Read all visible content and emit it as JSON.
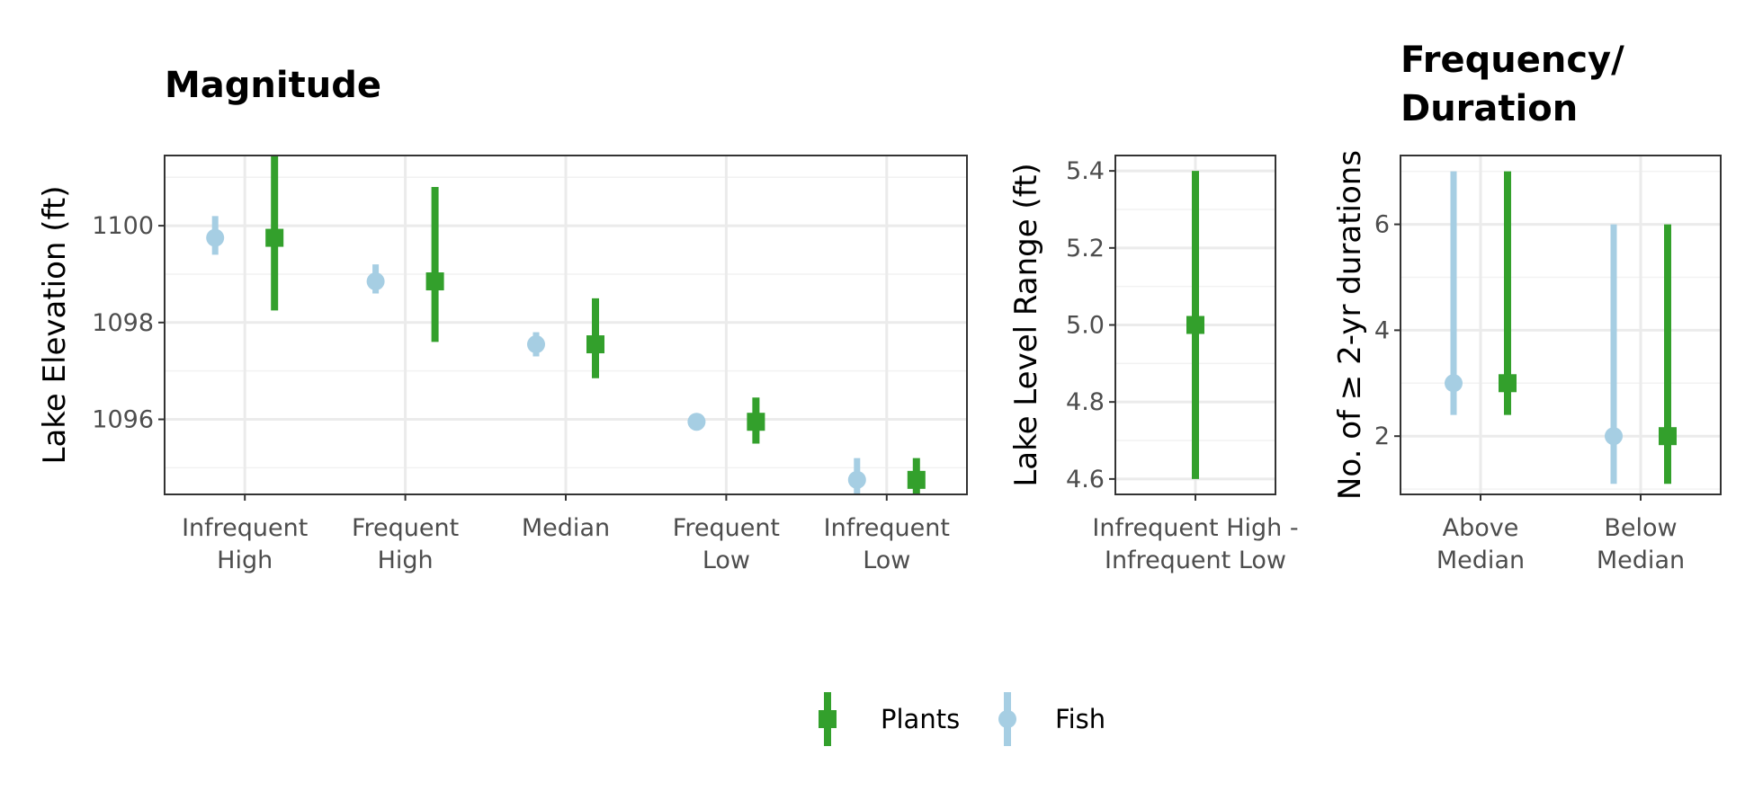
{
  "colors": {
    "Plants": "#33a02c",
    "Fish": "#a6cee3"
  },
  "legend": {
    "items": [
      {
        "label": "Plants",
        "shape": "square",
        "color": "#33a02c"
      },
      {
        "label": "Fish",
        "shape": "circle",
        "color": "#a6cee3"
      }
    ],
    "placement": "bottom"
  },
  "chart_data": [
    {
      "type": "pointrange",
      "title": "Magnitude",
      "xlabel": "",
      "ylabel": "Lake Elevation (ft)",
      "ylim": [
        1094.45,
        1101.45
      ],
      "yticks": [
        1096,
        1098,
        1100
      ],
      "categories": [
        "Infrequent\nHigh",
        "Frequent\nHigh",
        "Median",
        "Frequent\nLow",
        "Infrequent\nLow"
      ],
      "grid": true,
      "series": [
        {
          "name": "Fish",
          "values": [
            1099.75,
            1098.85,
            1097.55,
            1095.95,
            1094.75
          ],
          "lower": [
            1099.4,
            1098.6,
            1097.3,
            1095.85,
            1094.45
          ],
          "upper": [
            1100.2,
            1099.2,
            1097.8,
            1096.1,
            1095.2
          ]
        },
        {
          "name": "Plants",
          "values": [
            1099.75,
            1098.85,
            1097.55,
            1095.95,
            1094.75
          ],
          "lower": [
            1098.25,
            1097.6,
            1096.85,
            1095.5,
            1094.45
          ],
          "upper": [
            1101.45,
            1100.8,
            1098.5,
            1096.45,
            1095.2
          ]
        }
      ]
    },
    {
      "type": "pointrange",
      "title": "",
      "xlabel": "",
      "ylabel": "Lake Level Range (ft)",
      "ylim": [
        4.56,
        5.44
      ],
      "yticks": [
        4.6,
        4.8,
        5.0,
        5.2,
        5.4
      ],
      "categories": [
        "Infrequent High -\nInfrequent Low"
      ],
      "grid": true,
      "series": [
        {
          "name": "Plants",
          "values": [
            5.0
          ],
          "lower": [
            4.6
          ],
          "upper": [
            5.4
          ]
        }
      ]
    },
    {
      "type": "pointrange",
      "title": "Frequency/\nDuration",
      "xlabel": "",
      "ylabel": "No. of ≥ 2-yr durations",
      "ylim": [
        0.9,
        7.3
      ],
      "yticks": [
        2,
        4,
        6
      ],
      "categories": [
        "Above\nMedian",
        "Below\nMedian"
      ],
      "grid": true,
      "series": [
        {
          "name": "Fish",
          "values": [
            3,
            2
          ],
          "lower": [
            2.4,
            1.1
          ],
          "upper": [
            7,
            6
          ]
        },
        {
          "name": "Plants",
          "values": [
            3,
            2
          ],
          "lower": [
            2.4,
            1.1
          ],
          "upper": [
            7,
            6
          ]
        }
      ]
    }
  ]
}
